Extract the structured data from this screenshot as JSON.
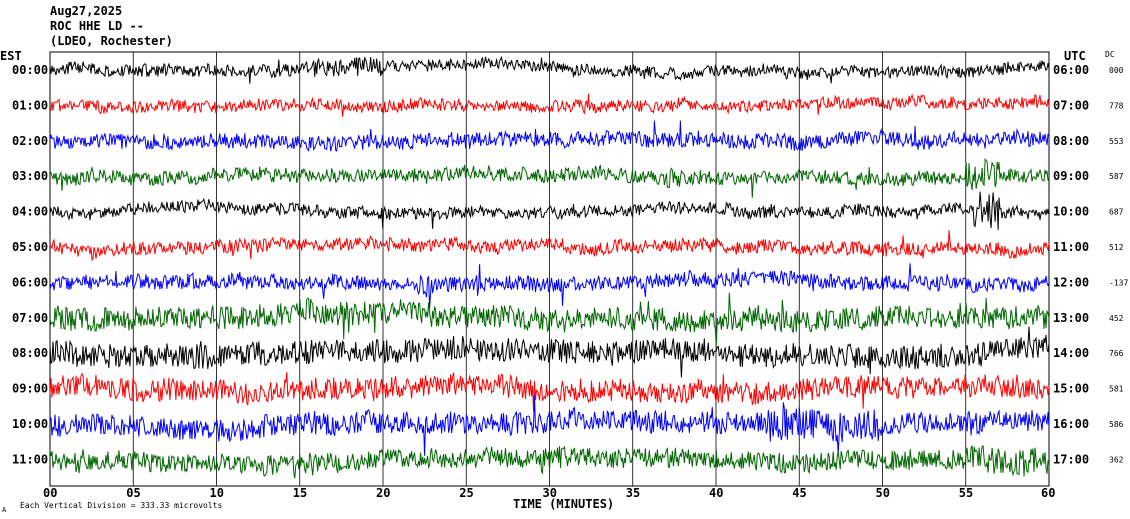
{
  "header": {
    "date": "Aug27,2025",
    "station": "ROC HHE LD --",
    "network": "(LDEO, Rochester)",
    "left_zone": "EST",
    "right_zone": "UTC",
    "dc_label": "DC"
  },
  "footer": {
    "xlabel": "TIME (MINUTES)",
    "scale_note": "Each Vertical Division = 333.33 microvolts",
    "corner_mark": "A"
  },
  "colors": {
    "palette": [
      "#000000",
      "#ff0000",
      "#0000ff",
      "#006600"
    ],
    "grid": "#000000"
  },
  "chart_data": {
    "type": "line",
    "title": "ROC HHE LD --",
    "xlabel": "TIME (MINUTES)",
    "xlim": [
      0,
      60
    ],
    "x_ticks": [
      "00",
      "05",
      "10",
      "15",
      "20",
      "25",
      "30",
      "35",
      "40",
      "45",
      "50",
      "55",
      "60"
    ],
    "grid": "vertical",
    "rows": [
      {
        "est": "00:00",
        "utc": "06:00",
        "dc": "000",
        "color": "#000000",
        "noise": 8,
        "events": [
          {
            "start": 15,
            "end": 20,
            "amp": 12
          }
        ]
      },
      {
        "est": "01:00",
        "utc": "07:00",
        "dc": "778",
        "color": "#ff0000",
        "noise": 8,
        "events": [
          {
            "start": 59,
            "end": 60,
            "amp": 10
          }
        ]
      },
      {
        "est": "02:00",
        "utc": "08:00",
        "dc": "553",
        "color": "#0000ff",
        "noise": 10,
        "events": [
          {
            "start": 10,
            "end": 11,
            "amp": 6
          }
        ]
      },
      {
        "est": "03:00",
        "utc": "09:00",
        "dc": "587",
        "color": "#006600",
        "noise": 9,
        "events": [
          {
            "start": 37,
            "end": 38,
            "amp": 14
          },
          {
            "start": 55,
            "end": 57,
            "amp": 22
          }
        ]
      },
      {
        "est": "04:00",
        "utc": "10:00",
        "dc": "687",
        "color": "#000000",
        "noise": 8,
        "events": [
          {
            "start": 42,
            "end": 58,
            "amp": 8
          },
          {
            "start": 55.5,
            "end": 57,
            "amp": 28
          }
        ]
      },
      {
        "est": "05:00",
        "utc": "11:00",
        "dc": "512",
        "color": "#ff0000",
        "noise": 9,
        "events": [
          {
            "start": 45,
            "end": 58,
            "amp": 5
          }
        ]
      },
      {
        "est": "06:00",
        "utc": "12:00",
        "dc": "-137",
        "color": "#0000ff",
        "noise": 10,
        "events": [
          {
            "start": 22,
            "end": 23,
            "amp": 14
          }
        ]
      },
      {
        "est": "07:00",
        "utc": "13:00",
        "dc": "452",
        "color": "#006600",
        "noise": 16,
        "events": [
          {
            "start": 11,
            "end": 12,
            "amp": 16
          },
          {
            "start": 45,
            "end": 46,
            "amp": 16
          }
        ]
      },
      {
        "est": "08:00",
        "utc": "14:00",
        "dc": "766",
        "color": "#000000",
        "noise": 16,
        "events": [
          {
            "start": 44,
            "end": 50,
            "amp": 12
          }
        ]
      },
      {
        "est": "09:00",
        "utc": "15:00",
        "dc": "581",
        "color": "#ff0000",
        "noise": 15,
        "events": [
          {
            "start": 11,
            "end": 13,
            "amp": 14
          },
          {
            "start": 44,
            "end": 48,
            "amp": 12
          }
        ]
      },
      {
        "est": "10:00",
        "utc": "16:00",
        "dc": "586",
        "color": "#0000ff",
        "noise": 15,
        "events": [
          {
            "start": 43,
            "end": 50,
            "amp": 22
          }
        ]
      },
      {
        "est": "11:00",
        "utc": "17:00",
        "dc": "362",
        "color": "#006600",
        "noise": 13,
        "events": [
          {
            "start": 29,
            "end": 31,
            "amp": 16
          },
          {
            "start": 55,
            "end": 60,
            "amp": 18
          }
        ]
      }
    ]
  }
}
